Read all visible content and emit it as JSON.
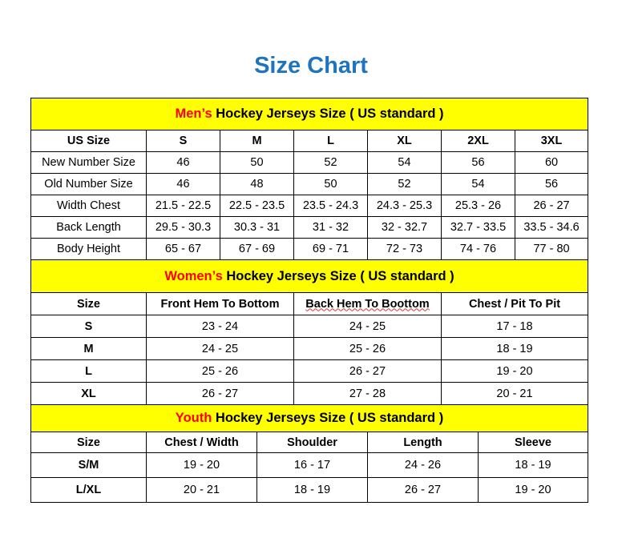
{
  "title": "Size Chart",
  "colors": {
    "title": "#1f74c0",
    "header_bg": "#ffff00",
    "accent_red": "#ff0000"
  },
  "men": {
    "header_prefix": "Men’s",
    "header_rest": " Hockey Jerseys Size ( US standard )",
    "columns": [
      "US Size",
      "S",
      "M",
      "L",
      "XL",
      "2XL",
      "3XL"
    ],
    "rows": [
      [
        "New Number Size",
        "46",
        "50",
        "52",
        "54",
        "56",
        "60"
      ],
      [
        "Old Number Size",
        "46",
        "48",
        "50",
        "52",
        "54",
        "56"
      ],
      [
        "Width Chest",
        "21.5 - 22.5",
        "22.5 - 23.5",
        "23.5 - 24.3",
        "24.3 - 25.3",
        "25.3 - 26",
        "26 - 27"
      ],
      [
        "Back Length",
        "29.5 - 30.3",
        "30.3 - 31",
        "31 - 32",
        "32 - 32.7",
        "32.7 - 33.5",
        "33.5 - 34.6"
      ],
      [
        "Body Height",
        "65 - 67",
        "67 - 69",
        "69 - 71",
        "72 - 73",
        "74 - 76",
        "77 - 80"
      ]
    ]
  },
  "women": {
    "header_prefix": "Women’s",
    "header_rest": " Hockey Jerseys Size ( US standard )",
    "columns": [
      "Size",
      "Front Hem To Bottom",
      "Back Hem To Boottom",
      "Chest / Pit To Pit"
    ],
    "rows": [
      [
        "S",
        "23 - 24",
        "24 - 25",
        "17 - 18"
      ],
      [
        "M",
        "24 - 25",
        "25 - 26",
        "18 - 19"
      ],
      [
        "L",
        "25 - 26",
        "26 - 27",
        "19 - 20"
      ],
      [
        "XL",
        "26 - 27",
        "27 - 28",
        "20 - 21"
      ]
    ]
  },
  "youth": {
    "header_prefix": "Youth",
    "header_rest": " Hockey Jerseys Size ( US standard )",
    "columns": [
      "Size",
      "Chest / Width",
      "Shoulder",
      "Length",
      "Sleeve"
    ],
    "rows": [
      [
        "S/M",
        "19 - 20",
        "16 - 17",
        "24 - 26",
        "18 - 19"
      ],
      [
        "L/XL",
        "20 - 21",
        "18 - 19",
        "26 - 27",
        "19 - 20"
      ]
    ]
  }
}
